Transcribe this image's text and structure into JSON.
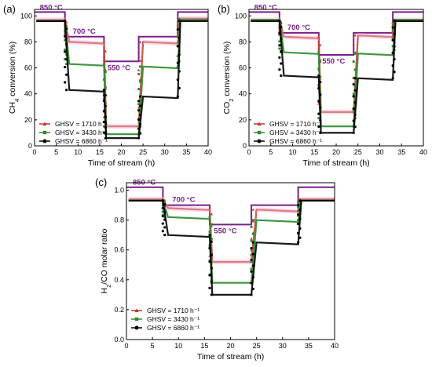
{
  "colors": {
    "temperature_line": "#7a1f8c",
    "series_red": "#c0392b",
    "series_green": "#2e8b2e",
    "series_black": "#000000",
    "band": "#f7b8d8"
  },
  "chart_data": [
    {
      "type": "line",
      "panel_label": "(a)",
      "xlabel": "Time of stream (h)",
      "ylabel_main": "CH",
      "ylabel_sub": "4",
      "ylabel_rest": " conversion (%)",
      "xlim": [
        0,
        40
      ],
      "ylim": [
        0,
        105
      ],
      "xticks": [
        0,
        5,
        10,
        15,
        20,
        25,
        30,
        35,
        40
      ],
      "yticks": [
        0,
        20,
        40,
        60,
        80,
        100
      ],
      "temperature_labels": [
        "850 °C",
        "700 °C",
        "550 °C"
      ],
      "temperature_profile": {
        "levels": [
          103,
          84,
          65
        ],
        "steps": [
          0,
          7,
          16,
          24,
          33,
          40
        ]
      },
      "legend": [
        "GHSV = 1710 h⁻¹",
        "GHSV = 3430 h⁻¹",
        "GHSV = 6860 h⁻¹"
      ],
      "series": [
        {
          "name": "GHSV = 1710 h⁻¹",
          "color": "#c0392b",
          "levels": [
            97,
            80,
            15,
            80,
            98
          ]
        },
        {
          "name": "GHSV = 3430 h⁻¹",
          "color": "#2e8b2e",
          "levels": [
            96,
            63,
            9,
            61,
            97
          ]
        },
        {
          "name": "GHSV = 6860 h⁻¹",
          "color": "#000000",
          "levels": [
            96,
            43,
            6,
            38,
            96
          ]
        }
      ]
    },
    {
      "type": "line",
      "panel_label": "(b)",
      "xlabel": "Time of stream  (h)",
      "ylabel_main": "CO",
      "ylabel_sub": "2",
      "ylabel_rest": " conversion (%)",
      "xlim": [
        0,
        40
      ],
      "ylim": [
        0,
        105
      ],
      "xticks": [
        0,
        5,
        10,
        15,
        20,
        25,
        30,
        35,
        40
      ],
      "yticks": [
        0,
        20,
        40,
        60,
        80,
        100
      ],
      "temperature_labels": [
        "850 °C",
        "700 °C",
        "550 °C"
      ],
      "temperature_profile": {
        "levels": [
          103,
          87,
          70
        ],
        "steps": [
          0,
          7,
          16,
          24,
          33,
          40
        ]
      },
      "legend": [
        "GHSV = 1710 h⁻¹",
        "GHSV = 3430 h⁻¹",
        "GHSV = 6860 h⁻¹"
      ],
      "series": [
        {
          "name": "GHSV = 1710 h⁻¹",
          "color": "#c0392b",
          "levels": [
            97,
            84,
            26,
            85,
            97
          ]
        },
        {
          "name": "GHSV = 3430 h⁻¹",
          "color": "#2e8b2e",
          "levels": [
            97,
            72,
            15,
            71,
            97
          ]
        },
        {
          "name": "GHSV = 6860 h⁻¹",
          "color": "#000000",
          "levels": [
            96,
            54,
            10,
            52,
            96
          ]
        }
      ]
    },
    {
      "type": "line",
      "panel_label": "(c)",
      "xlabel": "Time of stream (h)",
      "ylabel_main": "H",
      "ylabel_sub": "2",
      "ylabel_rest": "/CO molar ratio",
      "xlim": [
        0,
        40
      ],
      "ylim": [
        0,
        1.05
      ],
      "xticks": [
        0,
        5,
        10,
        15,
        20,
        25,
        30,
        35,
        40
      ],
      "yticks": [
        0.0,
        0.2,
        0.4,
        0.6,
        0.8,
        1.0
      ],
      "temperature_labels": [
        "850 °C",
        "700 °C",
        "550 °C"
      ],
      "temperature_profile": {
        "levels": [
          1.02,
          0.9,
          0.77
        ],
        "steps": [
          0,
          7,
          16,
          24,
          33,
          40
        ]
      },
      "legend": [
        "GHSV = 1710 h⁻¹",
        "GHSV = 3430 h⁻¹",
        "GHSV = 6860 h⁻¹"
      ],
      "series": [
        {
          "name": "GHSV = 1710 h⁻¹",
          "color": "#c0392b",
          "levels": [
            0.94,
            0.88,
            0.52,
            0.87,
            0.94
          ]
        },
        {
          "name": "GHSV = 3430 h⁻¹",
          "color": "#2e8b2e",
          "levels": [
            0.93,
            0.82,
            0.38,
            0.8,
            0.93
          ]
        },
        {
          "name": "GHSV = 6860 h⁻¹",
          "color": "#000000",
          "levels": [
            0.93,
            0.7,
            0.3,
            0.65,
            0.93
          ]
        }
      ]
    }
  ]
}
